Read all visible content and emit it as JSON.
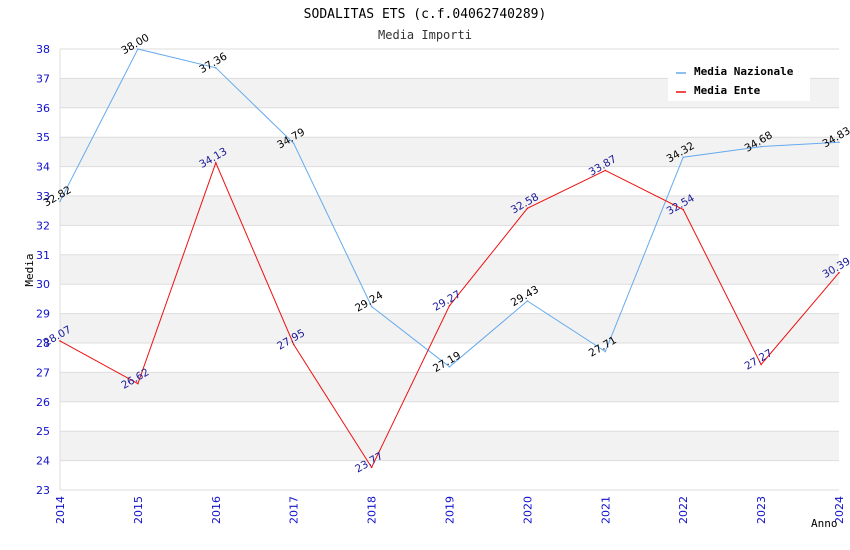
{
  "chart_data": {
    "type": "line",
    "title": "SODALITAS ETS (c.f.04062740289)",
    "subtitle": "Media Importi",
    "xlabel": "Anno",
    "ylabel": "Media",
    "x": [
      "2014",
      "2015",
      "2016",
      "2017",
      "2018",
      "2019",
      "2020",
      "2021",
      "2022",
      "2023",
      "2024"
    ],
    "ylim": [
      23,
      38
    ],
    "yticks": [
      "23",
      "24",
      "25",
      "26",
      "27",
      "28",
      "29",
      "30",
      "31",
      "32",
      "33",
      "34",
      "35",
      "36",
      "37",
      "38"
    ],
    "grid": true,
    "legend_position": "top-right",
    "series": [
      {
        "name": "Media Nazionale",
        "color": "#66aaee",
        "label_color": "#000000",
        "values": [
          32.82,
          38.0,
          37.36,
          34.79,
          29.24,
          27.19,
          29.43,
          27.71,
          34.32,
          34.68,
          34.83
        ],
        "labels": [
          "32.82",
          "38.00",
          "37.36",
          "34.79",
          "29.24",
          "27.19",
          "29.43",
          "27.71",
          "34.32",
          "34.68",
          "34.83"
        ]
      },
      {
        "name": "Media Ente",
        "color": "#ee1111",
        "label_color": "#1a1a99",
        "values": [
          28.07,
          26.62,
          34.13,
          27.95,
          23.77,
          29.27,
          32.58,
          33.87,
          32.54,
          27.27,
          30.39
        ],
        "labels": [
          "28.07",
          "26.62",
          "34.13",
          "27.95",
          "23.77",
          "29.27",
          "32.58",
          "33.87",
          "32.54",
          "27.27",
          "30.39"
        ]
      }
    ]
  }
}
